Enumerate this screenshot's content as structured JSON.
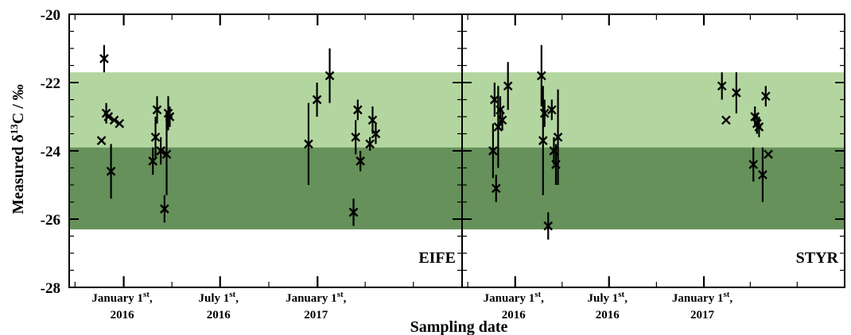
{
  "chart_data": {
    "type": "scatter",
    "ylabel": "Measured δ13C / ‰",
    "ylabel_parts": {
      "prefix": "Measured δ",
      "sup": "13",
      "suffix": "C / ‰"
    },
    "xlabel": "Sampling date",
    "ylim": [
      -28,
      -20
    ],
    "yticks": [
      "-20",
      "-22",
      "-24",
      "-26",
      "-28"
    ],
    "xlim": [
      "2015-09-20",
      "2017-10-01"
    ],
    "xticks": [
      {
        "date": "2016-01-01",
        "line1": "January 1",
        "sup": "st",
        "comma": ",",
        "line2": "2016"
      },
      {
        "date": "2016-07-01",
        "line1": "July 1",
        "sup": "st",
        "comma": ",",
        "line2": "2016"
      },
      {
        "date": "2017-01-01",
        "line1": "January 1",
        "sup": "st",
        "comma": ",",
        "line2": "2017"
      }
    ],
    "bands": [
      {
        "y_from": -23.9,
        "y_to": -21.7,
        "color": "#b3d6a0"
      },
      {
        "y_from": -26.3,
        "y_to": -23.9,
        "color": "#66915a"
      }
    ],
    "marker": "x",
    "error_bars": true,
    "panels": [
      {
        "label": "EIFE",
        "points": [
          {
            "date": "2015-11-20",
            "y": -23.7,
            "err": 0.0
          },
          {
            "date": "2015-11-25",
            "y": -21.3,
            "err": 0.4
          },
          {
            "date": "2015-11-29",
            "y": -22.9,
            "err": 0.3
          },
          {
            "date": "2015-12-03",
            "y": -23.0,
            "err": 0.0
          },
          {
            "date": "2015-12-08",
            "y": -24.6,
            "err": 0.8
          },
          {
            "date": "2015-12-14",
            "y": -23.1,
            "err": 0.0
          },
          {
            "date": "2015-12-24",
            "y": -23.2,
            "err": 0.0
          },
          {
            "date": "2016-02-25",
            "y": -24.3,
            "err": 0.4
          },
          {
            "date": "2016-03-01",
            "y": -23.6,
            "err": 0.6
          },
          {
            "date": "2016-03-04",
            "y": -22.8,
            "err": 0.4
          },
          {
            "date": "2016-03-11",
            "y": -24.0,
            "err": 0.4
          },
          {
            "date": "2016-03-18",
            "y": -25.7,
            "err": 0.4
          },
          {
            "date": "2016-03-22",
            "y": -24.1,
            "err": 1.2
          },
          {
            "date": "2016-03-25",
            "y": -22.9,
            "err": 0.5
          },
          {
            "date": "2016-03-28",
            "y": -23.0,
            "err": 0.3
          },
          {
            "date": "2016-12-15",
            "y": -23.8,
            "err": 1.2
          },
          {
            "date": "2016-12-31",
            "y": -22.5,
            "err": 0.5
          },
          {
            "date": "2017-01-24",
            "y": -21.8,
            "err": 0.8
          },
          {
            "date": "2017-03-10",
            "y": -25.8,
            "err": 0.4
          },
          {
            "date": "2017-03-14",
            "y": -23.6,
            "err": 0.5
          },
          {
            "date": "2017-03-18",
            "y": -22.8,
            "err": 0.3
          },
          {
            "date": "2017-03-23",
            "y": -24.3,
            "err": 0.3
          },
          {
            "date": "2017-04-10",
            "y": -23.8,
            "err": 0.2
          },
          {
            "date": "2017-04-15",
            "y": -23.1,
            "err": 0.4
          },
          {
            "date": "2017-04-21",
            "y": -23.5,
            "err": 0.3
          }
        ]
      },
      {
        "label": "STYR",
        "points": [
          {
            "date": "2015-11-19",
            "y": -24.0,
            "err": 0.8
          },
          {
            "date": "2015-11-22",
            "y": -22.5,
            "err": 0.5
          },
          {
            "date": "2015-11-25",
            "y": -25.1,
            "err": 0.4
          },
          {
            "date": "2015-11-29",
            "y": -23.3,
            "err": 1.2
          },
          {
            "date": "2015-12-03",
            "y": -22.8,
            "err": 0.4
          },
          {
            "date": "2015-12-07",
            "y": -23.1,
            "err": 0.3
          },
          {
            "date": "2015-12-18",
            "y": -22.1,
            "err": 0.7
          },
          {
            "date": "2016-02-21",
            "y": -21.8,
            "err": 0.9
          },
          {
            "date": "2016-02-24",
            "y": -23.7,
            "err": 1.6
          },
          {
            "date": "2016-02-27",
            "y": -22.9,
            "err": 0.4
          },
          {
            "date": "2016-03-05",
            "y": -26.2,
            "err": 0.4
          },
          {
            "date": "2016-03-12",
            "y": -22.8,
            "err": 0.3
          },
          {
            "date": "2016-03-16",
            "y": -24.0,
            "err": 0.4
          },
          {
            "date": "2016-03-20",
            "y": -24.4,
            "err": 0.6
          },
          {
            "date": "2016-03-24",
            "y": -23.6,
            "err": 1.4
          },
          {
            "date": "2017-02-05",
            "y": -22.1,
            "err": 0.4
          },
          {
            "date": "2017-02-13",
            "y": -23.1,
            "err": 0.0
          },
          {
            "date": "2017-03-05",
            "y": -22.3,
            "err": 0.6
          },
          {
            "date": "2017-04-07",
            "y": -24.4,
            "err": 0.5
          },
          {
            "date": "2017-04-10",
            "y": -23.0,
            "err": 0.3
          },
          {
            "date": "2017-04-14",
            "y": -23.2,
            "err": 0.3
          },
          {
            "date": "2017-04-18",
            "y": -23.3,
            "err": 0.3
          },
          {
            "date": "2017-04-25",
            "y": -24.7,
            "err": 0.8
          },
          {
            "date": "2017-05-01",
            "y": -22.4,
            "err": 0.3
          },
          {
            "date": "2017-05-06",
            "y": -24.1,
            "err": 0.0
          }
        ]
      }
    ]
  }
}
